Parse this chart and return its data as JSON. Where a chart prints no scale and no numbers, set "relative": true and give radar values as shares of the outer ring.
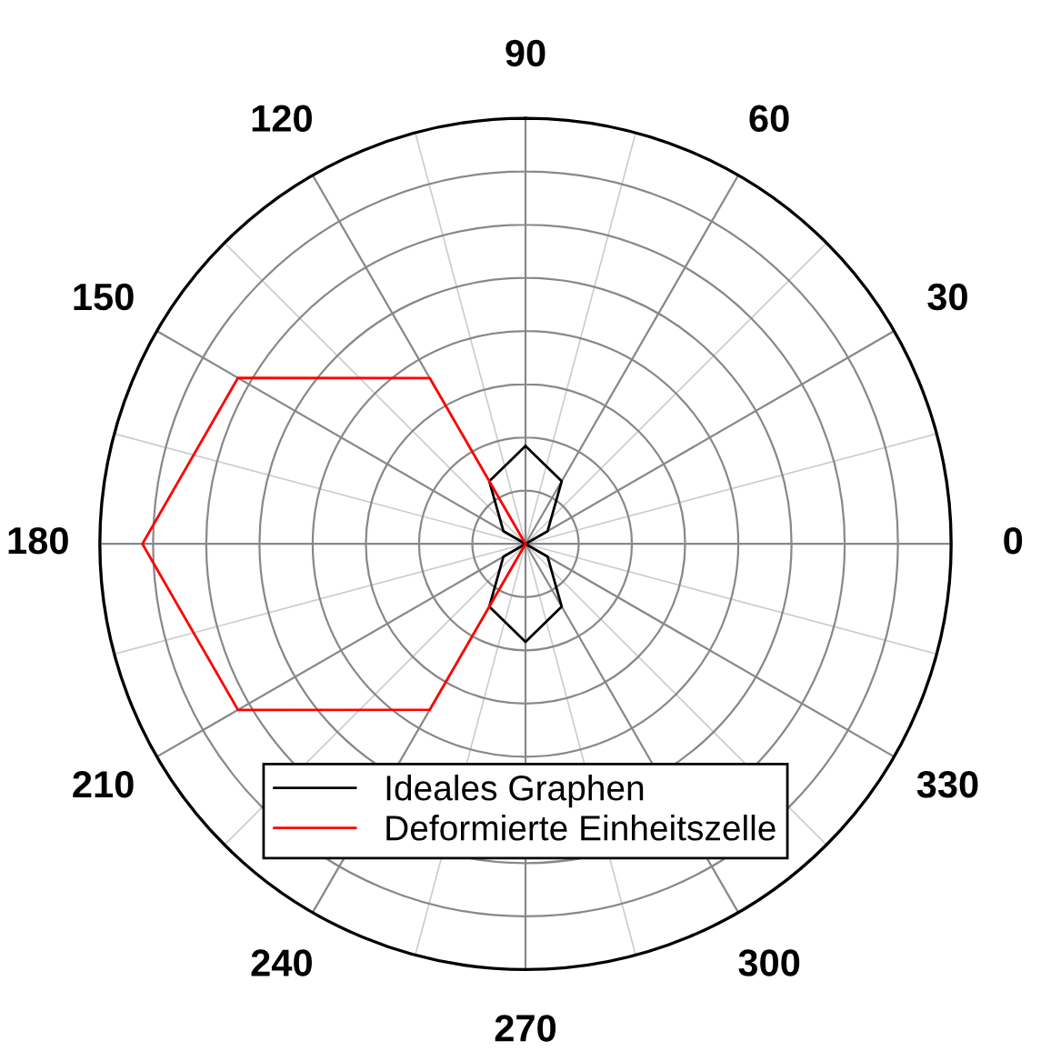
{
  "chart_data": {
    "type": "radar",
    "relative": true,
    "categories": [
      "90",
      "60",
      "30",
      "0",
      "330",
      "300",
      "270",
      "240",
      "210",
      "180",
      "150",
      "120"
    ],
    "grid": true,
    "legend": "bottom",
    "series": [
      {
        "name": "Ideales Graphen",
        "color": "#000000",
        "values": [
          0.23,
          0.17,
          0.06,
          0,
          0.06,
          0.17,
          0.23,
          0.17,
          0.06,
          0,
          0.06,
          0.17
        ]
      },
      {
        "name": "Deformierte Einheitszelle",
        "color": "#ff0000",
        "values": [
          0,
          0,
          0,
          0,
          0,
          0,
          0,
          0.45,
          0.78,
          0.9,
          0.78,
          0.45
        ]
      }
    ]
  }
}
